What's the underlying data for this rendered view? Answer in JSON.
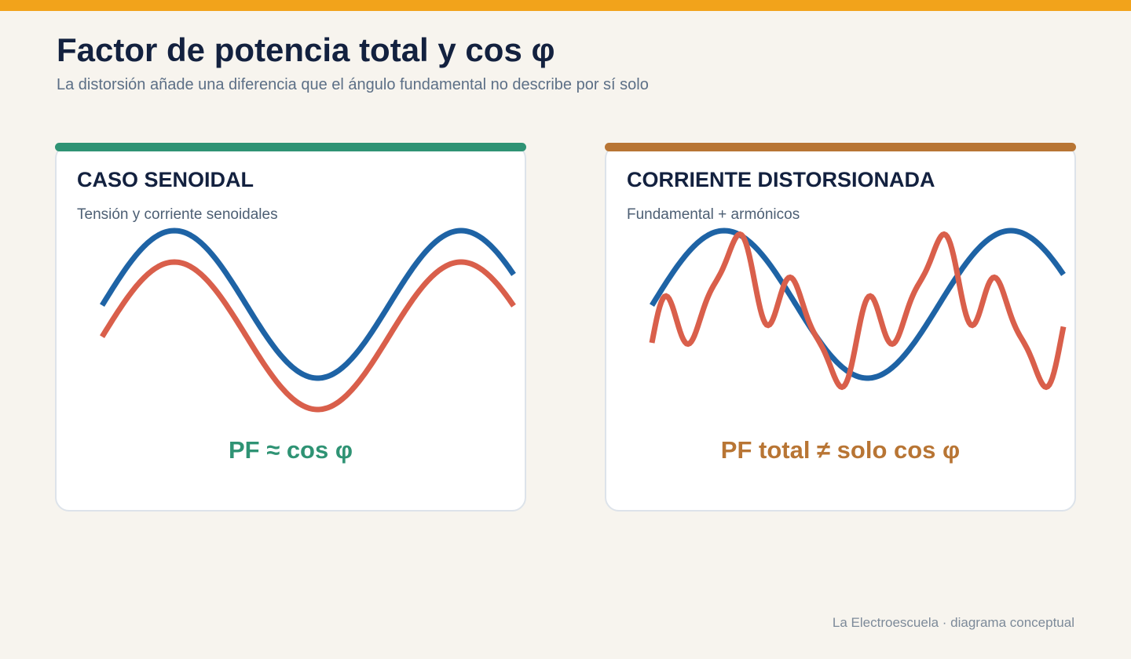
{
  "header": {
    "title": "Factor de potencia total y cos φ",
    "subtitle": "La distorsión añade una diferencia que el ángulo fundamental no describe por sí solo"
  },
  "panels": [
    {
      "title": "CASO SENOIDAL",
      "subtitle": "Tensión y corriente senoidales",
      "formula": "PF ≈ cos φ",
      "accent_color": "#2f9374",
      "waves": [
        {
          "role": "voltage",
          "color": "#1e63a5"
        },
        {
          "role": "current",
          "color": "#d95f4b"
        }
      ]
    },
    {
      "title": "CORRIENTE DISTORSIONADA",
      "subtitle": "Fundamental + armónicos",
      "formula": "PF total ≠ solo cos φ",
      "accent_color": "#b87534",
      "waves": [
        {
          "role": "fundamental",
          "color": "#1e63a5"
        },
        {
          "role": "distorted-current",
          "color": "#d95f4b"
        }
      ]
    }
  ],
  "footer": {
    "credit": "La Electroescuela · diagrama conceptual"
  },
  "colors": {
    "top_bar": "#f2a31b",
    "background": "#f7f4ee",
    "title": "#13213f"
  }
}
